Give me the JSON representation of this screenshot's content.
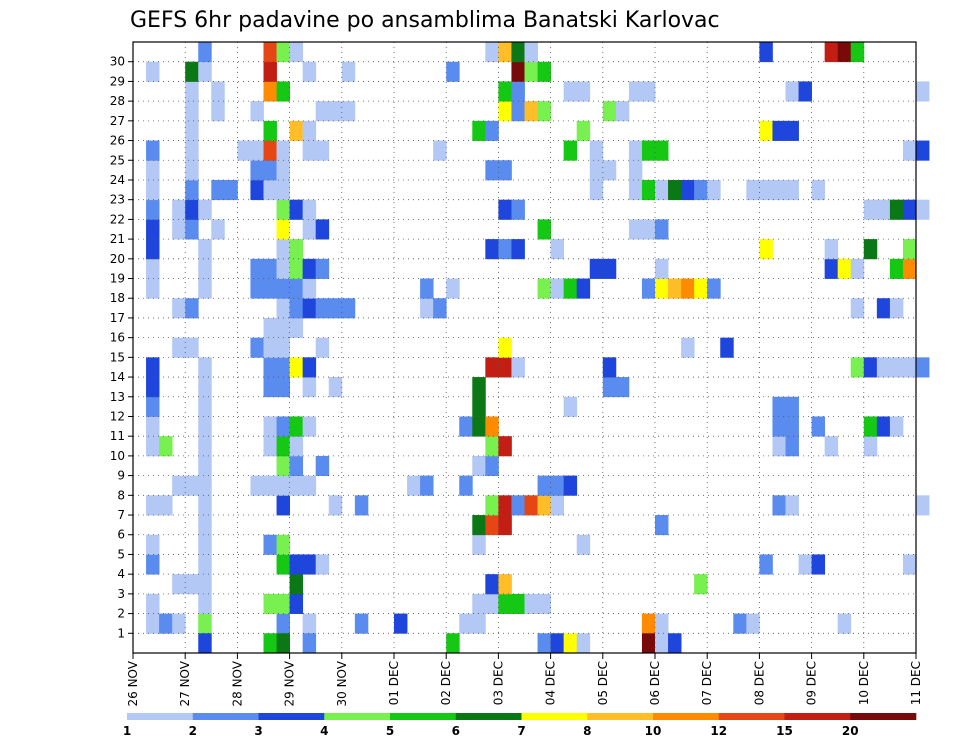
{
  "chart_data": {
    "type": "heatmap",
    "title": "GEFS 6hr padavine po ansamblima Banatski Karlovac",
    "y_ticks": [
      "1",
      "2",
      "3",
      "4",
      "5",
      "6",
      "7",
      "8",
      "9",
      "10",
      "11",
      "12",
      "13",
      "14",
      "15",
      "16",
      "17",
      "18",
      "19",
      "20",
      "21",
      "22",
      "23",
      "24",
      "25",
      "26",
      "27",
      "28",
      "29",
      "30"
    ],
    "x_ticks": [
      "26 NOV",
      "27 NOV",
      "28 NOV",
      "29 NOV",
      "30 NOV",
      "01 DEC",
      "02 DEC",
      "03 DEC",
      "04 DEC",
      "05 DEC",
      "06 DEC",
      "07 DEC",
      "08 DEC",
      "09 DEC",
      "10 DEC",
      "11 DEC"
    ],
    "x_steps_per_day": 4,
    "y_range": [
      1,
      30
    ],
    "grid": true,
    "legend": {
      "placement": "bottom",
      "levels": [
        "1",
        "2",
        "3",
        "4",
        "5",
        "6",
        "7",
        "8",
        "10",
        "12",
        "15",
        "20"
      ],
      "colors": [
        "#b4c8f5",
        "#5a8cf0",
        "#1e46dc",
        "#78f050",
        "#14c814",
        "#0a7814",
        "#ffff00",
        "#ffbe28",
        "#ff8c00",
        "#e64614",
        "#c31e14",
        "#780a0a"
      ]
    },
    "colors": [
      "#b4c8f5",
      "#5a8cf0",
      "#1e46dc",
      "#78f050",
      "#14c814",
      "#0a7814",
      "#ffff00",
      "#ffbe28",
      "#ff8c00",
      "#e64614",
      "#c31e14",
      "#780a0a"
    ],
    "cells": [
      [
        1,
        1,
        0
      ],
      [
        1,
        2,
        1
      ],
      [
        1,
        3,
        0
      ],
      [
        1,
        5,
        3
      ],
      [
        1,
        11,
        1
      ],
      [
        1,
        13,
        0
      ],
      [
        1,
        17,
        1
      ],
      [
        1,
        20,
        2
      ],
      [
        1,
        25,
        0
      ],
      [
        1,
        26,
        0
      ],
      [
        1,
        39,
        8
      ],
      [
        1,
        40,
        0
      ],
      [
        1,
        46,
        1
      ],
      [
        1,
        47,
        0
      ],
      [
        1,
        54,
        0
      ],
      [
        2,
        1,
        0
      ],
      [
        2,
        5,
        0
      ],
      [
        2,
        10,
        3
      ],
      [
        2,
        11,
        3
      ],
      [
        2,
        12,
        2
      ],
      [
        2,
        26,
        0
      ],
      [
        2,
        27,
        0
      ],
      [
        2,
        28,
        4
      ],
      [
        2,
        29,
        4
      ],
      [
        2,
        30,
        0
      ],
      [
        2,
        31,
        0
      ],
      [
        3,
        3,
        0
      ],
      [
        3,
        4,
        0
      ],
      [
        3,
        5,
        0
      ],
      [
        3,
        12,
        5
      ],
      [
        3,
        27,
        2
      ],
      [
        3,
        28,
        7
      ],
      [
        3,
        43,
        3
      ],
      [
        4,
        1,
        1
      ],
      [
        4,
        5,
        0
      ],
      [
        4,
        11,
        4
      ],
      [
        4,
        12,
        2
      ],
      [
        4,
        13,
        2
      ],
      [
        4,
        14,
        0
      ],
      [
        4,
        48,
        1
      ],
      [
        4,
        51,
        0
      ],
      [
        4,
        52,
        2
      ],
      [
        4,
        59,
        0
      ],
      [
        5,
        1,
        0
      ],
      [
        5,
        5,
        0
      ],
      [
        5,
        10,
        1
      ],
      [
        5,
        11,
        3
      ],
      [
        5,
        26,
        0
      ],
      [
        5,
        34,
        0
      ],
      [
        6,
        5,
        0
      ],
      [
        6,
        26,
        5
      ],
      [
        6,
        27,
        9
      ],
      [
        6,
        28,
        10
      ],
      [
        6,
        40,
        1
      ],
      [
        7,
        1,
        0
      ],
      [
        7,
        2,
        0
      ],
      [
        7,
        5,
        0
      ],
      [
        7,
        11,
        2
      ],
      [
        7,
        15,
        0
      ],
      [
        7,
        17,
        1
      ],
      [
        7,
        27,
        3
      ],
      [
        7,
        28,
        10
      ],
      [
        7,
        29,
        1
      ],
      [
        7,
        30,
        9
      ],
      [
        7,
        31,
        7
      ],
      [
        7,
        32,
        0
      ],
      [
        7,
        49,
        1
      ],
      [
        7,
        50,
        0
      ],
      [
        7,
        60,
        0
      ],
      [
        8,
        3,
        0
      ],
      [
        8,
        4,
        0
      ],
      [
        8,
        5,
        0
      ],
      [
        8,
        9,
        0
      ],
      [
        8,
        10,
        0
      ],
      [
        8,
        11,
        0
      ],
      [
        8,
        12,
        0
      ],
      [
        8,
        13,
        0
      ],
      [
        8,
        21,
        0
      ],
      [
        8,
        22,
        1
      ],
      [
        8,
        25,
        1
      ],
      [
        8,
        31,
        1
      ],
      [
        8,
        32,
        1
      ],
      [
        8,
        33,
        2
      ],
      [
        9,
        5,
        0
      ],
      [
        9,
        11,
        3
      ],
      [
        9,
        12,
        1
      ],
      [
        9,
        14,
        1
      ],
      [
        9,
        26,
        0
      ],
      [
        9,
        27,
        1
      ],
      [
        10,
        1,
        0
      ],
      [
        10,
        2,
        3
      ],
      [
        10,
        5,
        0
      ],
      [
        10,
        10,
        0
      ],
      [
        10,
        11,
        4
      ],
      [
        10,
        12,
        0
      ],
      [
        10,
        27,
        3
      ],
      [
        10,
        28,
        10
      ],
      [
        10,
        49,
        0
      ],
      [
        10,
        50,
        1
      ],
      [
        10,
        53,
        0
      ],
      [
        10,
        56,
        0
      ],
      [
        11,
        1,
        0
      ],
      [
        11,
        5,
        0
      ],
      [
        11,
        10,
        0
      ],
      [
        11,
        11,
        1
      ],
      [
        11,
        12,
        4
      ],
      [
        11,
        13,
        0
      ],
      [
        11,
        25,
        1
      ],
      [
        11,
        26,
        5
      ],
      [
        11,
        27,
        8
      ],
      [
        11,
        49,
        1
      ],
      [
        11,
        50,
        1
      ],
      [
        11,
        52,
        1
      ],
      [
        11,
        56,
        4
      ],
      [
        11,
        57,
        2
      ],
      [
        11,
        58,
        0
      ],
      [
        12,
        1,
        1
      ],
      [
        12,
        5,
        0
      ],
      [
        12,
        26,
        5
      ],
      [
        12,
        33,
        0
      ],
      [
        12,
        49,
        1
      ],
      [
        12,
        50,
        1
      ],
      [
        13,
        1,
        2
      ],
      [
        13,
        5,
        0
      ],
      [
        13,
        10,
        1
      ],
      [
        13,
        11,
        1
      ],
      [
        13,
        13,
        0
      ],
      [
        13,
        15,
        0
      ],
      [
        13,
        26,
        5
      ],
      [
        13,
        36,
        1
      ],
      [
        13,
        37,
        1
      ],
      [
        14,
        1,
        2
      ],
      [
        14,
        5,
        0
      ],
      [
        14,
        10,
        1
      ],
      [
        14,
        11,
        1
      ],
      [
        14,
        12,
        6
      ],
      [
        14,
        13,
        2
      ],
      [
        14,
        27,
        10
      ],
      [
        14,
        28,
        10
      ],
      [
        14,
        29,
        0
      ],
      [
        14,
        36,
        2
      ],
      [
        14,
        55,
        3
      ],
      [
        14,
        56,
        2
      ],
      [
        14,
        57,
        0
      ],
      [
        14,
        58,
        0
      ],
      [
        14,
        59,
        0
      ],
      [
        14,
        60,
        1
      ],
      [
        15,
        3,
        0
      ],
      [
        15,
        4,
        0
      ],
      [
        15,
        9,
        1
      ],
      [
        15,
        10,
        0
      ],
      [
        15,
        11,
        0
      ],
      [
        15,
        14,
        0
      ],
      [
        15,
        28,
        6
      ],
      [
        15,
        42,
        0
      ],
      [
        15,
        45,
        2
      ],
      [
        16,
        10,
        0
      ],
      [
        16,
        11,
        0
      ],
      [
        16,
        12,
        0
      ],
      [
        17,
        3,
        0
      ],
      [
        17,
        4,
        1
      ],
      [
        17,
        11,
        0
      ],
      [
        17,
        12,
        1
      ],
      [
        17,
        13,
        2
      ],
      [
        17,
        14,
        1
      ],
      [
        17,
        15,
        1
      ],
      [
        17,
        16,
        1
      ],
      [
        17,
        22,
        0
      ],
      [
        17,
        23,
        1
      ],
      [
        17,
        55,
        0
      ],
      [
        17,
        57,
        2
      ],
      [
        17,
        58,
        0
      ],
      [
        18,
        1,
        0
      ],
      [
        18,
        5,
        0
      ],
      [
        18,
        9,
        1
      ],
      [
        18,
        10,
        1
      ],
      [
        18,
        11,
        1
      ],
      [
        18,
        12,
        1
      ],
      [
        18,
        13,
        0
      ],
      [
        18,
        22,
        1
      ],
      [
        18,
        24,
        0
      ],
      [
        18,
        31,
        3
      ],
      [
        18,
        32,
        0
      ],
      [
        18,
        33,
        4
      ],
      [
        18,
        34,
        2
      ],
      [
        18,
        39,
        1
      ],
      [
        18,
        40,
        6
      ],
      [
        18,
        41,
        7
      ],
      [
        18,
        42,
        8
      ],
      [
        18,
        43,
        6
      ],
      [
        18,
        44,
        1
      ],
      [
        19,
        1,
        0
      ],
      [
        19,
        5,
        0
      ],
      [
        19,
        9,
        1
      ],
      [
        19,
        10,
        1
      ],
      [
        19,
        11,
        0
      ],
      [
        19,
        12,
        3
      ],
      [
        19,
        13,
        2
      ],
      [
        19,
        14,
        1
      ],
      [
        19,
        35,
        2
      ],
      [
        19,
        36,
        2
      ],
      [
        19,
        40,
        0
      ],
      [
        19,
        53,
        2
      ],
      [
        19,
        54,
        6
      ],
      [
        19,
        55,
        0
      ],
      [
        19,
        58,
        4
      ],
      [
        19,
        59,
        8
      ],
      [
        20,
        1,
        2
      ],
      [
        20,
        5,
        0
      ],
      [
        20,
        11,
        0
      ],
      [
        20,
        12,
        3
      ],
      [
        20,
        27,
        2
      ],
      [
        20,
        28,
        1
      ],
      [
        20,
        29,
        2
      ],
      [
        20,
        32,
        0
      ],
      [
        20,
        48,
        6
      ],
      [
        20,
        53,
        0
      ],
      [
        20,
        56,
        5
      ],
      [
        20,
        59,
        3
      ],
      [
        21,
        1,
        2
      ],
      [
        21,
        3,
        0
      ],
      [
        21,
        4,
        1
      ],
      [
        21,
        6,
        0
      ],
      [
        21,
        11,
        6
      ],
      [
        21,
        13,
        0
      ],
      [
        21,
        14,
        2
      ],
      [
        21,
        31,
        4
      ],
      [
        21,
        38,
        0
      ],
      [
        21,
        39,
        0
      ],
      [
        21,
        40,
        1
      ],
      [
        22,
        1,
        1
      ],
      [
        22,
        3,
        0
      ],
      [
        22,
        4,
        2
      ],
      [
        22,
        5,
        0
      ],
      [
        22,
        11,
        3
      ],
      [
        22,
        12,
        2
      ],
      [
        22,
        13,
        0
      ],
      [
        22,
        28,
        2
      ],
      [
        22,
        29,
        1
      ],
      [
        22,
        56,
        0
      ],
      [
        22,
        57,
        0
      ],
      [
        22,
        58,
        5
      ],
      [
        22,
        59,
        2
      ],
      [
        22,
        60,
        0
      ],
      [
        23,
        1,
        0
      ],
      [
        23,
        4,
        1
      ],
      [
        23,
        6,
        1
      ],
      [
        23,
        7,
        1
      ],
      [
        23,
        9,
        2
      ],
      [
        23,
        10,
        0
      ],
      [
        23,
        11,
        0
      ],
      [
        23,
        35,
        0
      ],
      [
        23,
        38,
        0
      ],
      [
        23,
        39,
        4
      ],
      [
        23,
        40,
        0
      ],
      [
        23,
        41,
        5
      ],
      [
        23,
        42,
        2
      ],
      [
        23,
        43,
        1
      ],
      [
        23,
        44,
        0
      ],
      [
        23,
        47,
        0
      ],
      [
        23,
        48,
        0
      ],
      [
        23,
        49,
        0
      ],
      [
        23,
        50,
        0
      ],
      [
        23,
        52,
        0
      ],
      [
        24,
        1,
        0
      ],
      [
        24,
        4,
        0
      ],
      [
        24,
        9,
        1
      ],
      [
        24,
        10,
        1
      ],
      [
        24,
        11,
        0
      ],
      [
        24,
        27,
        1
      ],
      [
        24,
        28,
        1
      ],
      [
        24,
        35,
        0
      ],
      [
        24,
        36,
        0
      ],
      [
        24,
        38,
        0
      ],
      [
        25,
        1,
        1
      ],
      [
        25,
        4,
        0
      ],
      [
        25,
        8,
        0
      ],
      [
        25,
        9,
        0
      ],
      [
        25,
        10,
        9
      ],
      [
        25,
        11,
        0
      ],
      [
        25,
        13,
        0
      ],
      [
        25,
        14,
        0
      ],
      [
        25,
        23,
        0
      ],
      [
        25,
        33,
        4
      ],
      [
        25,
        35,
        0
      ],
      [
        25,
        38,
        0
      ],
      [
        25,
        39,
        4
      ],
      [
        25,
        40,
        4
      ],
      [
        25,
        59,
        0
      ],
      [
        25,
        60,
        2
      ],
      [
        26,
        4,
        0
      ],
      [
        26,
        10,
        4
      ],
      [
        26,
        12,
        7
      ],
      [
        26,
        13,
        0
      ],
      [
        26,
        26,
        4
      ],
      [
        26,
        27,
        1
      ],
      [
        26,
        34,
        3
      ],
      [
        26,
        48,
        6
      ],
      [
        26,
        49,
        2
      ],
      [
        26,
        50,
        2
      ],
      [
        27,
        4,
        0
      ],
      [
        27,
        6,
        0
      ],
      [
        27,
        9,
        0
      ],
      [
        27,
        14,
        0
      ],
      [
        27,
        15,
        0
      ],
      [
        27,
        16,
        0
      ],
      [
        27,
        28,
        6
      ],
      [
        27,
        29,
        1
      ],
      [
        27,
        30,
        7
      ],
      [
        27,
        31,
        3
      ],
      [
        27,
        36,
        3
      ],
      [
        27,
        37,
        0
      ],
      [
        28,
        4,
        0
      ],
      [
        28,
        6,
        0
      ],
      [
        28,
        10,
        8
      ],
      [
        28,
        11,
        4
      ],
      [
        28,
        28,
        4
      ],
      [
        28,
        29,
        1
      ],
      [
        28,
        33,
        0
      ],
      [
        28,
        34,
        0
      ],
      [
        28,
        38,
        0
      ],
      [
        28,
        39,
        0
      ],
      [
        28,
        50,
        0
      ],
      [
        28,
        51,
        2
      ],
      [
        28,
        60,
        0
      ],
      [
        29,
        1,
        0
      ],
      [
        29,
        4,
        5
      ],
      [
        29,
        5,
        0
      ],
      [
        29,
        10,
        10
      ],
      [
        29,
        13,
        0
      ],
      [
        29,
        16,
        0
      ],
      [
        29,
        24,
        1
      ],
      [
        29,
        29,
        11
      ],
      [
        29,
        30,
        3
      ],
      [
        29,
        31,
        4
      ],
      [
        30,
        5,
        1
      ],
      [
        30,
        10,
        9
      ],
      [
        30,
        11,
        3
      ],
      [
        30,
        12,
        0
      ],
      [
        30,
        27,
        0
      ],
      [
        30,
        28,
        7
      ],
      [
        30,
        29,
        5
      ],
      [
        30,
        30,
        0
      ],
      [
        30,
        48,
        2
      ],
      [
        30,
        53,
        10
      ],
      [
        30,
        54,
        11
      ],
      [
        30,
        55,
        4
      ],
      [
        0,
        5,
        2
      ],
      [
        0,
        10,
        4
      ],
      [
        0,
        11,
        5
      ],
      [
        0,
        13,
        1
      ],
      [
        0,
        24,
        4
      ],
      [
        0,
        31,
        1
      ],
      [
        0,
        32,
        2
      ],
      [
        0,
        33,
        6
      ],
      [
        0,
        34,
        0
      ],
      [
        0,
        39,
        11
      ],
      [
        0,
        40,
        0
      ],
      [
        0,
        41,
        2
      ]
    ]
  }
}
